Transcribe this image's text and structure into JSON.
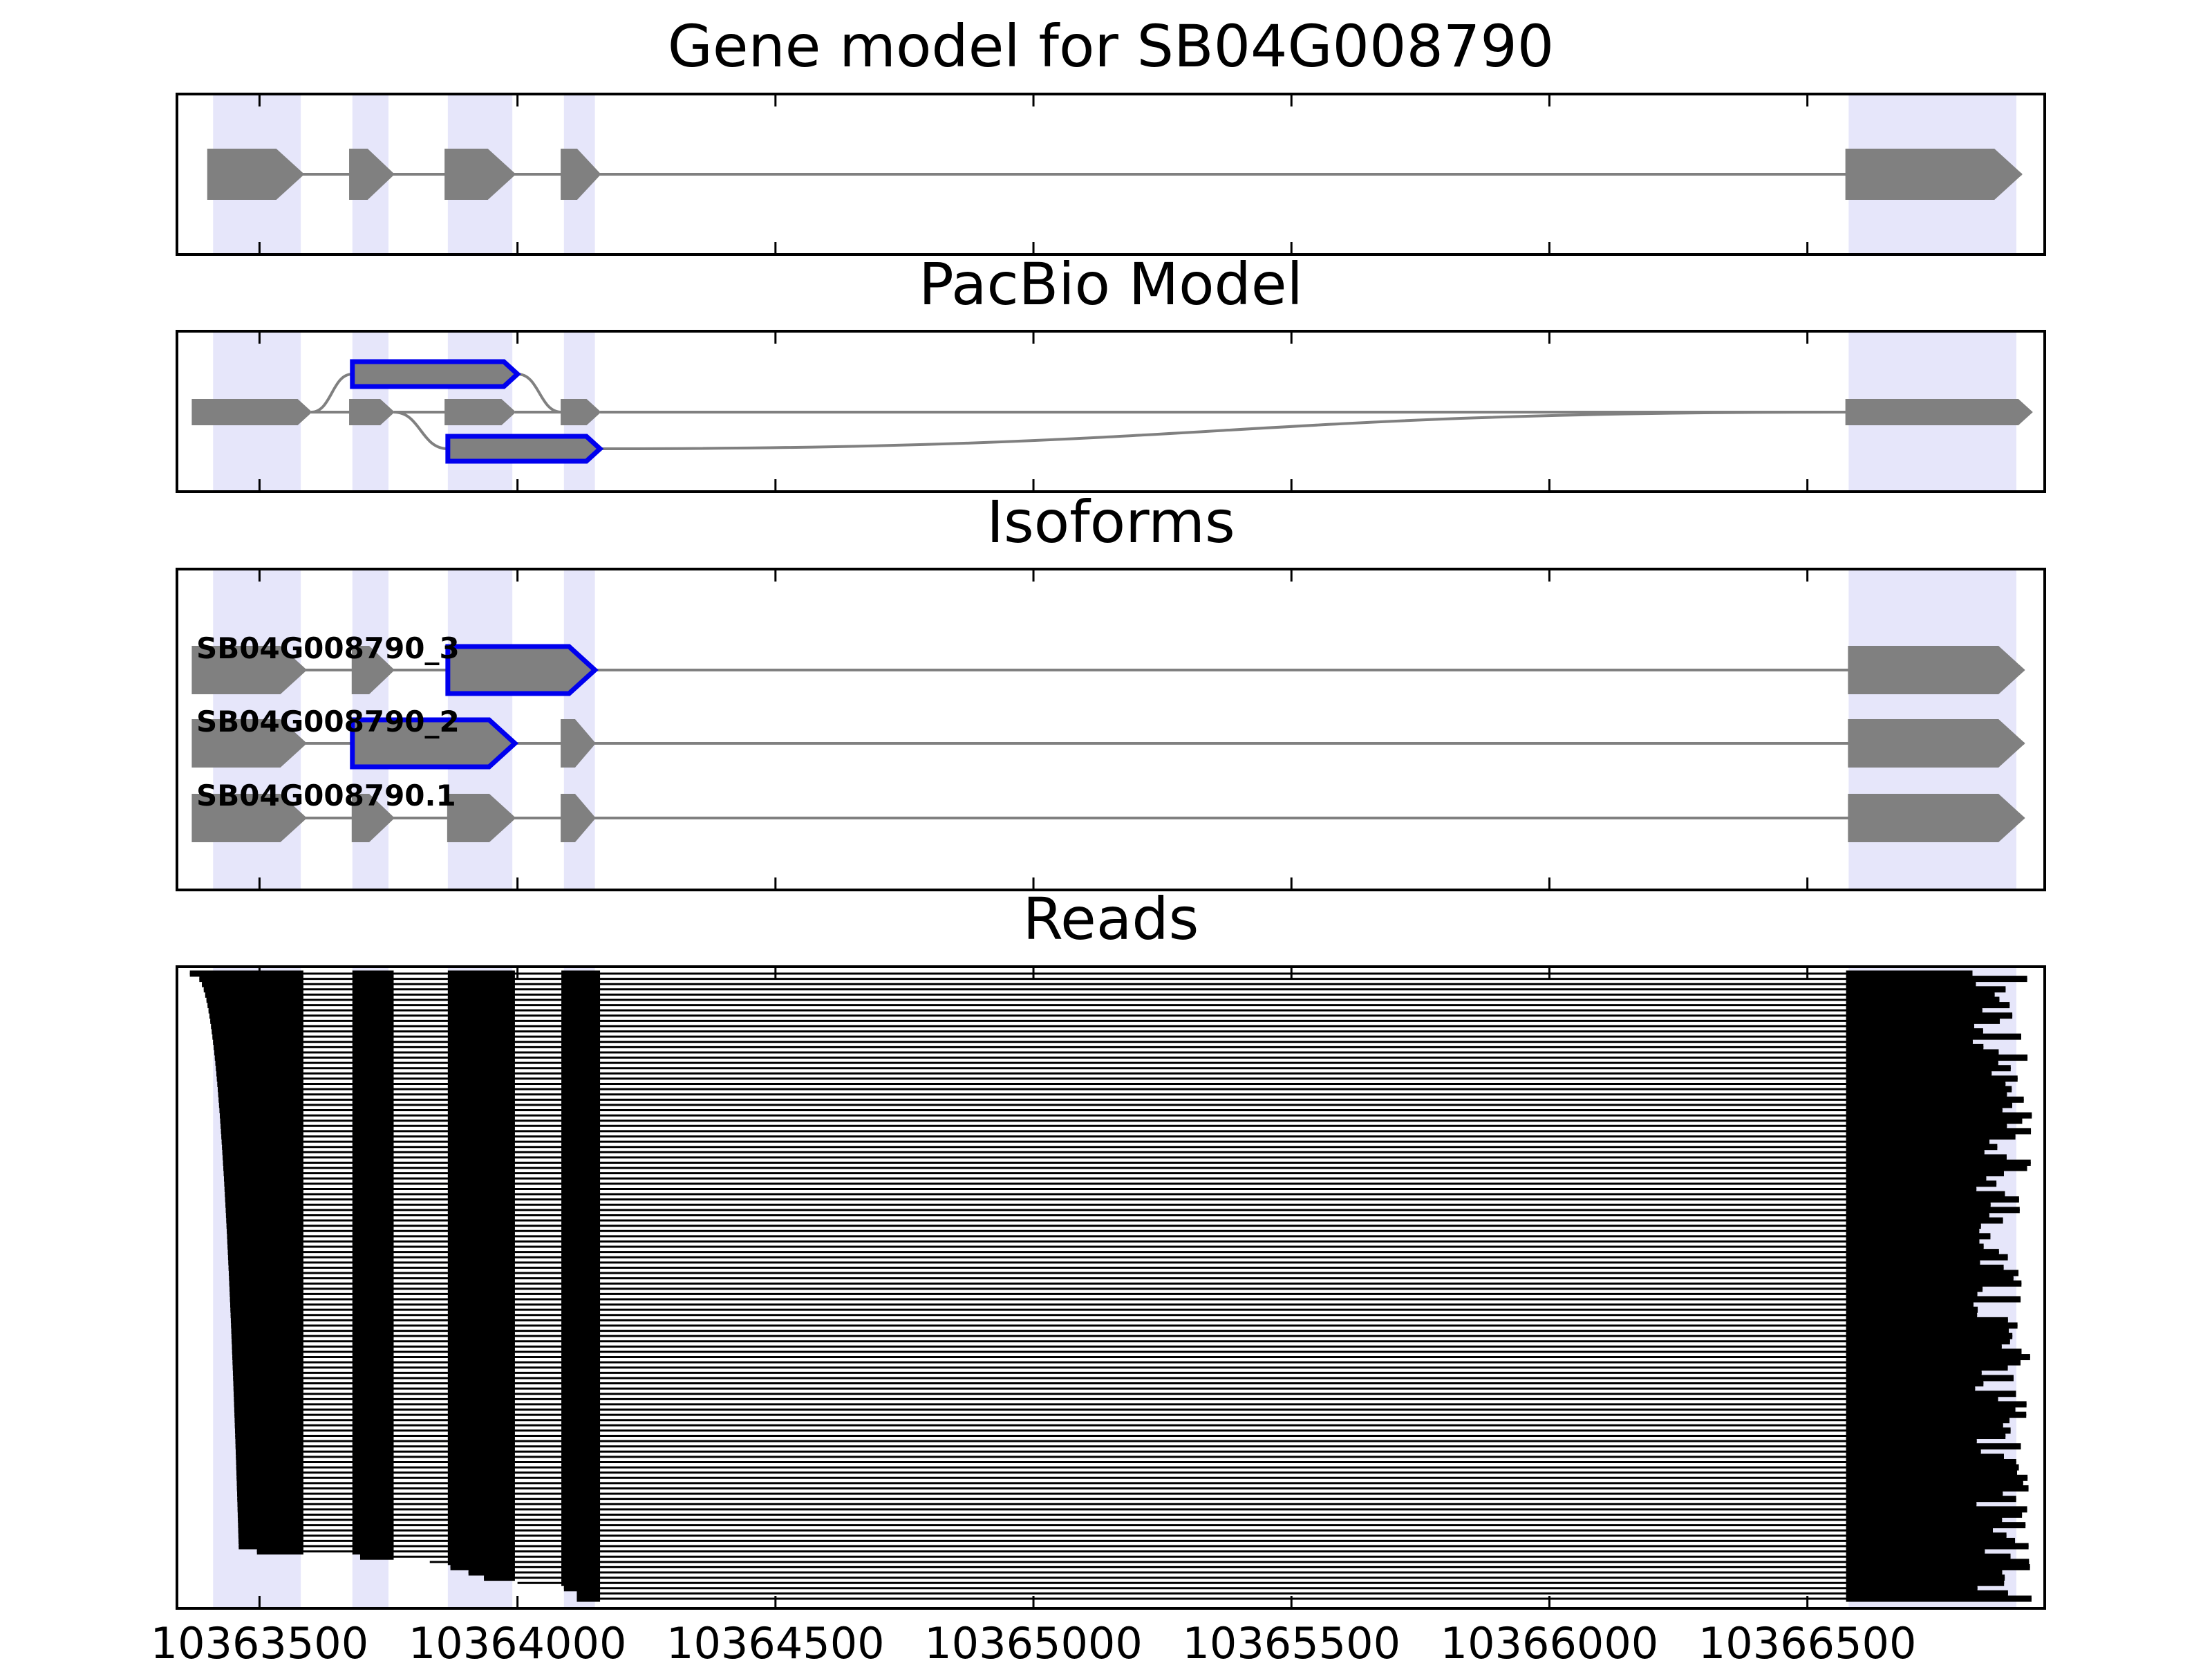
{
  "chart_data": {
    "type": "gene-structure",
    "xlim": [
      10363340,
      10366960
    ],
    "x_ticks": [
      10363500,
      10364000,
      10364500,
      10365000,
      10365500,
      10366000,
      10366500
    ],
    "x_tick_labels": [
      "10363500",
      "10364000",
      "10364500",
      "10365000",
      "10365500",
      "10366000",
      "10366500"
    ],
    "highlight_regions": [
      [
        10363410,
        10363580
      ],
      [
        10363680,
        10363750
      ],
      [
        10363865,
        10363990
      ],
      [
        10364090,
        10364150
      ],
      [
        10366580,
        10366905
      ]
    ],
    "panels": [
      {
        "title": "Gene model for SB04G008790",
        "tracks": [
          {
            "label": "",
            "exons": [
              [
                10363400,
                10363585
              ],
              [
                10363675,
                10363760
              ],
              [
                10363860,
                10363995
              ],
              [
                10364085,
                10364160
              ],
              [
                10366575,
                10366915
              ]
            ],
            "highlighted_exons": []
          }
        ]
      },
      {
        "title": "PacBio Model",
        "exon_lanes": [
          {
            "lane": "top",
            "exons": [
              [
                10363680,
                10364000
              ]
            ],
            "highlighted": true
          },
          {
            "lane": "middle",
            "exons": [
              [
                10363370,
                10363600
              ],
              [
                10363675,
                10363760
              ],
              [
                10363860,
                10363995
              ],
              [
                10364085,
                10364160
              ],
              [
                10366575,
                10366935
              ]
            ],
            "highlighted": false
          },
          {
            "lane": "bottom",
            "exons": [
              [
                10363865,
                10364160
              ]
            ],
            "highlighted": true
          }
        ],
        "junctions": [
          {
            "from_lane": "middle",
            "from": 10363600,
            "to_lane": "top",
            "to": 10363680
          },
          {
            "from_lane": "top",
            "from": 10364000,
            "to_lane": "middle",
            "to": 10364085
          },
          {
            "from_lane": "middle",
            "from": 10363760,
            "to_lane": "bottom",
            "to": 10363865
          },
          {
            "from_lane": "bottom",
            "from": 10364160,
            "to_lane": "middle",
            "to": 10366575
          }
        ]
      },
      {
        "title": "Isoforms",
        "tracks": [
          {
            "label": "SB04G008790_3",
            "exons": [
              [
                10363370,
                10363590
              ],
              [
                10363680,
                10363760
              ],
              [
                10363865,
                10364150
              ],
              [
                10366580,
                10366920
              ]
            ],
            "highlighted_exons": [
              2
            ]
          },
          {
            "label": "SB04G008790_2",
            "exons": [
              [
                10363370,
                10363590
              ],
              [
                10363680,
                10363995
              ],
              [
                10364085,
                10364150
              ],
              [
                10366580,
                10366920
              ]
            ],
            "highlighted_exons": [
              1
            ]
          },
          {
            "label": "SB04G008790.1",
            "exons": [
              [
                10363370,
                10363590
              ],
              [
                10363680,
                10363760
              ],
              [
                10363865,
                10363995
              ],
              [
                10364085,
                10364150
              ],
              [
                10366580,
                10366920
              ]
            ],
            "highlighted_exons": []
          }
        ]
      },
      {
        "title": "Reads",
        "read_count": 120,
        "read_exon_blocks": [
          [
            10363585
          ],
          [
            10363680,
            10363760
          ],
          [
            10363865,
            10363995
          ],
          [
            10364085,
            10364160
          ],
          [
            10366575
          ]
        ],
        "read_start_range": [
          10363365,
          10363460
        ],
        "read_end_range": [
          10366820,
          10366935
        ],
        "late_start_reads": [
          10363495,
          10363695,
          10363830,
          10363870,
          10363905,
          10363935,
          10364000,
          10364090,
          10364115,
          10364115
        ]
      }
    ]
  }
}
